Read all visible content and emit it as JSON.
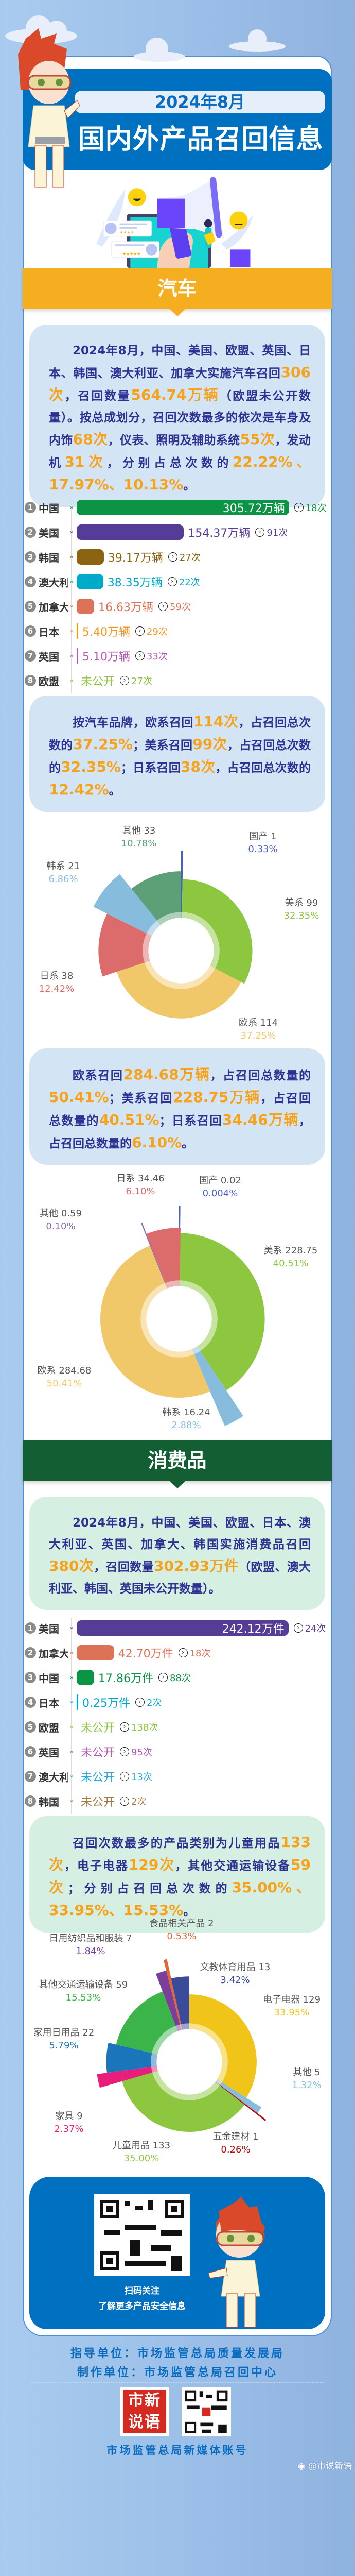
{
  "header": {
    "date": "2024年8月",
    "title": "国内外产品召回信息"
  },
  "car": {
    "section_title": "汽车",
    "summary": [
      {
        "t": "2024年8月，中国、美国、欧盟、英国、日本、韩国、澳大利亚、加拿大实施汽车召回"
      },
      {
        "t": "306次",
        "hl": true
      },
      {
        "t": "，召回数量"
      },
      {
        "t": "564.74万辆",
        "hl": true
      },
      {
        "t": "（欧盟未公开数量）。按总成划分，召回次数最多的依次是车身及内饰"
      },
      {
        "t": "68次",
        "hl": true
      },
      {
        "t": "，仪表、照明及辅助系统"
      },
      {
        "t": "55次",
        "hl": true
      },
      {
        "t": "，发动机"
      },
      {
        "t": "31次",
        "hl": true
      },
      {
        "t": "，分别占总次数的"
      },
      {
        "t": "22.22%、17.97%、10.13%",
        "hl": true
      },
      {
        "t": "。"
      }
    ],
    "ranking": [
      {
        "rank": "1",
        "country": "中国",
        "amount": "305.72万辆",
        "value": 305.72,
        "count": "18次",
        "color": "#0a9444"
      },
      {
        "rank": "2",
        "country": "美国",
        "amount": "154.37万辆",
        "value": 154.37,
        "count": "91次",
        "color": "#553c96"
      },
      {
        "rank": "3",
        "country": "韩国",
        "amount": "39.17万辆",
        "value": 39.17,
        "count": "27次",
        "color": "#8a6410"
      },
      {
        "rank": "4",
        "country": "澳大利亚",
        "amount": "38.35万辆",
        "value": 38.35,
        "count": "22次",
        "color": "#00aac8"
      },
      {
        "rank": "5",
        "country": "加拿大",
        "amount": "16.63万辆",
        "value": 16.63,
        "count": "59次",
        "color": "#dc7358"
      },
      {
        "rank": "6",
        "country": "日本",
        "amount": "5.40万辆",
        "value": 5.4,
        "count": "29次",
        "color": "#f7941d"
      },
      {
        "rank": "7",
        "country": "英国",
        "amount": "5.10万辆",
        "value": 5.1,
        "count": "33次",
        "color": "#b45ab4"
      },
      {
        "rank": "8",
        "country": "欧盟",
        "amount": "未公开",
        "value": null,
        "count": "27次",
        "color": "#8dc63f"
      }
    ],
    "brand_count_text": [
      {
        "t": "按汽车品牌，欧系召回"
      },
      {
        "t": "114次",
        "hl": true
      },
      {
        "t": "，占召回总次数的"
      },
      {
        "t": "37.25%",
        "hl": true
      },
      {
        "t": "；美系召回"
      },
      {
        "t": "99次",
        "hl": true
      },
      {
        "t": "，占召回总次数的"
      },
      {
        "t": "32.35%",
        "hl": true
      },
      {
        "t": "；日系召回"
      },
      {
        "t": "38次",
        "hl": true
      },
      {
        "t": "，占召回总次数的"
      },
      {
        "t": "12.42%",
        "hl": true
      },
      {
        "t": "。"
      }
    ],
    "brand_volume_text": [
      {
        "t": "欧系召回"
      },
      {
        "t": "284.68万辆",
        "hl": true
      },
      {
        "t": "，占召回总数量的"
      },
      {
        "t": "50.41%",
        "hl": true
      },
      {
        "t": "；美系召回"
      },
      {
        "t": "228.75万辆",
        "hl": true
      },
      {
        "t": "，占召回总数量的"
      },
      {
        "t": "40.51%",
        "hl": true
      },
      {
        "t": "；日系召回"
      },
      {
        "t": "34.46万辆",
        "hl": true
      },
      {
        "t": "，占召回总数量的"
      },
      {
        "t": "6.10%",
        "hl": true
      },
      {
        "t": "。"
      }
    ]
  },
  "consumer": {
    "section_title": "消费品",
    "summary": [
      {
        "t": "2024年8月，中国、美国、欧盟、日本、澳大利亚、英国、加拿大、韩国实施消费品召回"
      },
      {
        "t": "380次",
        "hl": true
      },
      {
        "t": "，召回数量"
      },
      {
        "t": "302.93万件",
        "hl": true
      },
      {
        "t": "（欧盟、澳大利亚、韩国、英国未公开数量）。"
      }
    ],
    "ranking": [
      {
        "rank": "1",
        "country": "美国",
        "amount": "242.12万件",
        "value": 242.12,
        "count": "24次",
        "color": "#553c96"
      },
      {
        "rank": "2",
        "country": "加拿大",
        "amount": "42.70万件",
        "value": 42.7,
        "count": "18次",
        "color": "#dc7358"
      },
      {
        "rank": "3",
        "country": "中国",
        "amount": "17.86万件",
        "value": 17.86,
        "count": "88次",
        "color": "#0a9444"
      },
      {
        "rank": "4",
        "country": "日本",
        "amount": "0.25万件",
        "value": 0.25,
        "count": "2次",
        "color": "#00a8d0"
      },
      {
        "rank": "5",
        "country": "欧盟",
        "amount": "未公开",
        "value": null,
        "count": "138次",
        "color": "#8dc63f"
      },
      {
        "rank": "6",
        "country": "英国",
        "amount": "未公开",
        "value": null,
        "count": "95次",
        "color": "#b45ab4"
      },
      {
        "rank": "7",
        "country": "澳大利亚",
        "amount": "未公开",
        "value": null,
        "count": "13次",
        "color": "#29abe2"
      },
      {
        "rank": "8",
        "country": "韩国",
        "amount": "未公开",
        "value": null,
        "count": "2次",
        "color": "#a07c3c"
      }
    ],
    "category_text": [
      {
        "t": "召回次数最多的产品类别为儿童用品"
      },
      {
        "t": "133次",
        "hl": true
      },
      {
        "t": "，电子电器"
      },
      {
        "t": "129次",
        "hl": true
      },
      {
        "t": "，其他交通运输设备"
      },
      {
        "t": "59次",
        "hl": true
      },
      {
        "t": "；分别占召回总次数的"
      },
      {
        "t": "35.00%、33.95%、15.53%",
        "hl": true
      },
      {
        "t": "。"
      }
    ]
  },
  "chart_data": [
    {
      "type": "pie",
      "variant": "rose-donut",
      "slices": [
        {
          "label": "国产 1",
          "value": 1,
          "pct": "0.33%",
          "color": "#4a5fc1"
        },
        {
          "label": "美系 99",
          "value": 99,
          "pct": "32.35%",
          "color": "#8dc63f"
        },
        {
          "label": "欧系 114",
          "value": 114,
          "pct": "37.25%",
          "color": "#f0c869"
        },
        {
          "label": "日系 38",
          "value": 38,
          "pct": "12.42%",
          "color": "#dc6b6b"
        },
        {
          "label": "韩系 21",
          "value": 21,
          "pct": "6.86%",
          "color": "#88bcdc"
        },
        {
          "label": "其他 33",
          "value": 33,
          "pct": "10.78%",
          "color": "#5da077"
        }
      ]
    },
    {
      "type": "pie",
      "variant": "rose-donut",
      "slices": [
        {
          "label": "国产 0.02",
          "value": 0.02,
          "pct": "0.004%",
          "color": "#4a5fc1"
        },
        {
          "label": "美系 228.75",
          "value": 228.75,
          "pct": "40.51%",
          "color": "#8dc63f"
        },
        {
          "label": "韩系 16.24",
          "value": 16.24,
          "pct": "2.88%",
          "color": "#88bcdc"
        },
        {
          "label": "欧系 284.68",
          "value": 284.68,
          "pct": "50.41%",
          "color": "#f0c869"
        },
        {
          "label": "其他 0.59",
          "value": 0.59,
          "pct": "0.10%",
          "color": "#8a6aa8"
        },
        {
          "label": "日系 34.46",
          "value": 34.46,
          "pct": "6.10%",
          "color": "#dc6b6b"
        }
      ]
    },
    {
      "type": "pie",
      "variant": "rose-donut",
      "slices": [
        {
          "label": "电子电器 129",
          "value": 129,
          "pct": "33.95%",
          "color": "#f0c419"
        },
        {
          "label": "其他 5",
          "value": 5,
          "pct": "1.32%",
          "color": "#88bcdc"
        },
        {
          "label": "五金建材 1",
          "value": 1,
          "pct": "0.26%",
          "color": "#b01010"
        },
        {
          "label": "儿童用品 133",
          "value": 133,
          "pct": "35.00%",
          "color": "#8dc63f"
        },
        {
          "label": "家具 9",
          "value": 9,
          "pct": "2.37%",
          "color": "#e91e7a"
        },
        {
          "label": "家用日用品 22",
          "value": 22,
          "pct": "5.79%",
          "color": "#1a75bb"
        },
        {
          "label": "其他交通运输设备 59",
          "value": 59,
          "pct": "15.53%",
          "color": "#3bb54a"
        },
        {
          "label": "日用纺织品和服装 7",
          "value": 7,
          "pct": "1.84%",
          "color": "#7b3f9a"
        },
        {
          "label": "食品相关产品 2",
          "value": 2,
          "pct": "0.53%",
          "color": "#e0663a"
        },
        {
          "label": "文教体育用品 13",
          "value": 13,
          "pct": "3.42%",
          "color": "#3a4b9a"
        }
      ]
    }
  ],
  "footer": {
    "qr_caption_1": "扫码关注",
    "qr_caption_2": "了解更多产品安全信息",
    "guide": "指导单位：市场监管总局质量发展局",
    "producer": "制作单位：市场监管总局召回中心",
    "media_label": "市场监管总局新媒体账号",
    "logo_text": "市新说语",
    "watermark": "@市说新语"
  },
  "colors": {
    "brand_blue": "#0070c0",
    "car_band": "#f4ae1f",
    "consumer_band": "#135e33",
    "highlight": "#f7a21b",
    "text_navy": "#2e3192"
  }
}
